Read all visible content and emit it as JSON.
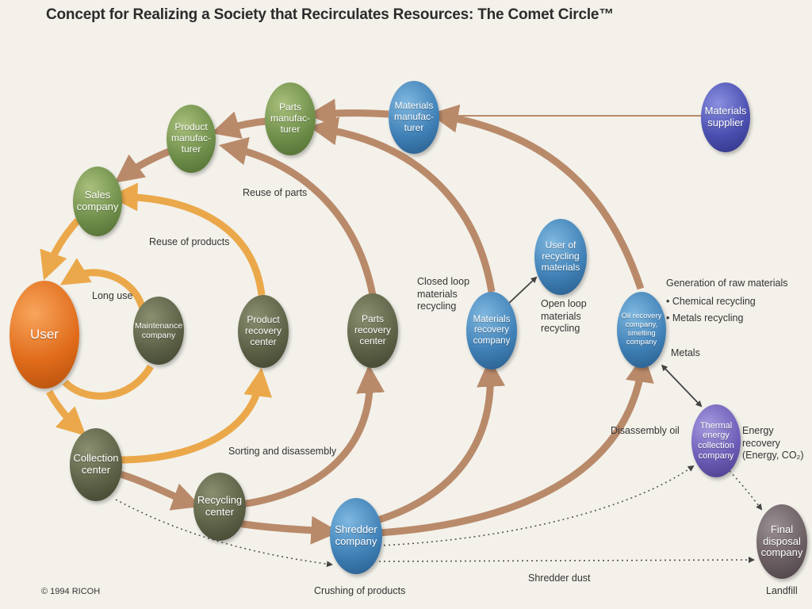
{
  "title": "Concept for Realizing a Society that Recirculates Resources: The Comet Circle™",
  "copyright": "© 1994 RICOH",
  "colors": {
    "forward_flow": "#b98a6a",
    "reuse_flow": "#eba84a",
    "thin_link": "#444444"
  },
  "nodes": {
    "user": "User",
    "maintenance": "Maintenance company",
    "sales": "Sales company",
    "product_manufacturer": "Product manufac-turer",
    "parts_manufacturer": "Parts manufac-turer",
    "materials_manufacturer": "Materials manufac-turer",
    "materials_supplier": "Materials supplier",
    "collection": "Collection center",
    "product_recovery": "Product recovery center",
    "parts_recovery": "Parts recovery center",
    "materials_recovery": "Materials recovery company",
    "user_recycling": "User of recycling materials",
    "oil_recovery": "Oil recovery company, smelting company",
    "thermal": "Thermal energy collection company",
    "recycling_center": "Recycling center",
    "shredder": "Shredder company",
    "final_disposal": "Final disposal company"
  },
  "labels": {
    "long_use": "Long use",
    "reuse_products": "Reuse of products",
    "reuse_parts": "Reuse of parts",
    "closed_loop": "Closed loop materials recycling",
    "open_loop": "Open loop materials recycling",
    "generation": "Generation of raw materials",
    "chemical": "• Chemical recycling",
    "metals_recycling": "• Metals recycling",
    "metals": "Metals",
    "disassembly_oil": "Disassembly oil",
    "energy_recovery": "Energy recovery (Energy, CO₂)",
    "sorting": "Sorting and disassembly",
    "crushing": "Crushing of products",
    "shredder_dust": "Shredder dust",
    "landfill": "Landfill"
  }
}
